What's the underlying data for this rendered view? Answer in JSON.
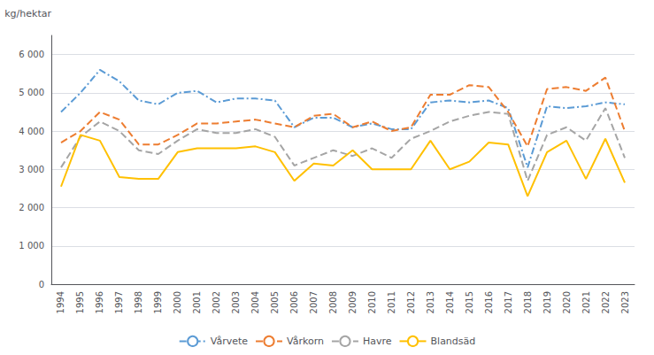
{
  "chart_data": {
    "type": "line",
    "y_label": "kg/hektar",
    "x": [
      1994,
      1995,
      1996,
      1997,
      1998,
      1999,
      2000,
      2001,
      2002,
      2003,
      2004,
      2005,
      2006,
      2007,
      2008,
      2009,
      2010,
      2011,
      2012,
      2013,
      2014,
      2015,
      2016,
      2017,
      2018,
      2019,
      2020,
      2021,
      2022,
      2023
    ],
    "series": [
      {
        "name": "Vårvete",
        "color": "#5B9BD5",
        "line_style": "dashdot",
        "values": [
          4500,
          5000,
          5600,
          5300,
          4800,
          4700,
          5000,
          5050,
          4750,
          4850,
          4850,
          4800,
          4100,
          4350,
          4350,
          4100,
          4200,
          4050,
          4050,
          4750,
          4800,
          4750,
          4800,
          4600,
          3050,
          4650,
          4600,
          4650,
          4750,
          4700
        ]
      },
      {
        "name": "Vårkorn",
        "color": "#ED7D31",
        "line_style": "dashed",
        "values": [
          3700,
          4000,
          4500,
          4300,
          3650,
          3650,
          3900,
          4200,
          4200,
          4250,
          4300,
          4200,
          4100,
          4400,
          4450,
          4100,
          4250,
          4000,
          4100,
          4950,
          4950,
          5200,
          5150,
          4500,
          3600,
          5100,
          5150,
          5050,
          5400,
          4000
        ]
      },
      {
        "name": "Havre",
        "color": "#A5A5A5",
        "line_style": "dashed",
        "values": [
          3050,
          3850,
          4250,
          4000,
          3500,
          3400,
          3750,
          4050,
          3950,
          3950,
          4050,
          3850,
          3100,
          3300,
          3500,
          3350,
          3550,
          3300,
          3800,
          4000,
          4250,
          4400,
          4500,
          4450,
          2700,
          3900,
          4100,
          3750,
          4600,
          3300
        ]
      },
      {
        "name": "Blandsäd",
        "color": "#FFC000",
        "line_style": "solid",
        "values": [
          2550,
          3900,
          3750,
          2800,
          2750,
          2750,
          3450,
          3550,
          3550,
          3550,
          3600,
          3450,
          2700,
          3150,
          3100,
          3500,
          3000,
          3000,
          3000,
          3750,
          3000,
          3200,
          3700,
          3650,
          2300,
          3450,
          3750,
          2750,
          3800,
          2650
        ]
      }
    ],
    "xlim": [
      1993.5,
      2023.5
    ],
    "xticks": [
      1994,
      1995,
      1996,
      1997,
      1998,
      1999,
      2000,
      2001,
      2002,
      2003,
      2004,
      2005,
      2006,
      2007,
      2008,
      2009,
      2010,
      2011,
      2012,
      2013,
      2014,
      2015,
      2016,
      2017,
      2018,
      2019,
      2020,
      2021,
      2022,
      2023
    ],
    "ylim": [
      0,
      6500
    ],
    "yticks": [
      0,
      {
        "value": 1000,
        "label": "1 000"
      },
      {
        "value": 2000,
        "label": "2 000"
      },
      {
        "value": 3000,
        "label": "3 000"
      },
      {
        "value": 4000,
        "label": "4 000"
      },
      {
        "value": 5000,
        "label": "5 000"
      },
      {
        "value": 6000,
        "label": "6 000"
      }
    ],
    "grid": true,
    "legend": "bottom"
  }
}
